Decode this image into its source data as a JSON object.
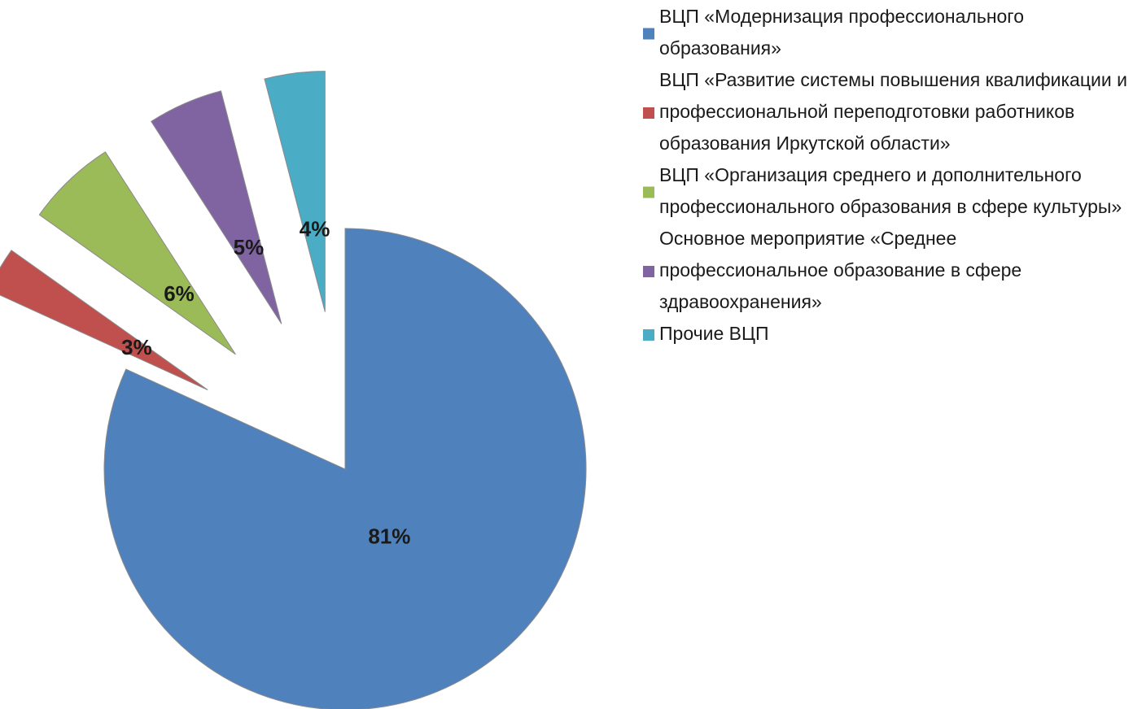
{
  "chart_data": {
    "type": "pie",
    "categories": [
      "ВЦП  «Модернизация профессионального образования»",
      "ВЦП «Развитие системы повышения квалификации и профессиональной переподготовки работников образования Иркутской области»",
      "ВЦП «Организация среднего и дополнительного профессионального образования в сфере культуры»",
      "Основное мероприятие «Среднее профессиональное образование в сфере здравоохранения»",
      "Прочие ВЦП"
    ],
    "values": [
      81,
      3,
      6,
      5,
      4
    ],
    "value_labels": [
      "81%",
      "3%",
      "6%",
      "5%",
      "4%"
    ],
    "colors": [
      "#4f81bd",
      "#c0504d",
      "#9bbb59",
      "#8064a2",
      "#4bacc6"
    ],
    "legend": "right"
  }
}
